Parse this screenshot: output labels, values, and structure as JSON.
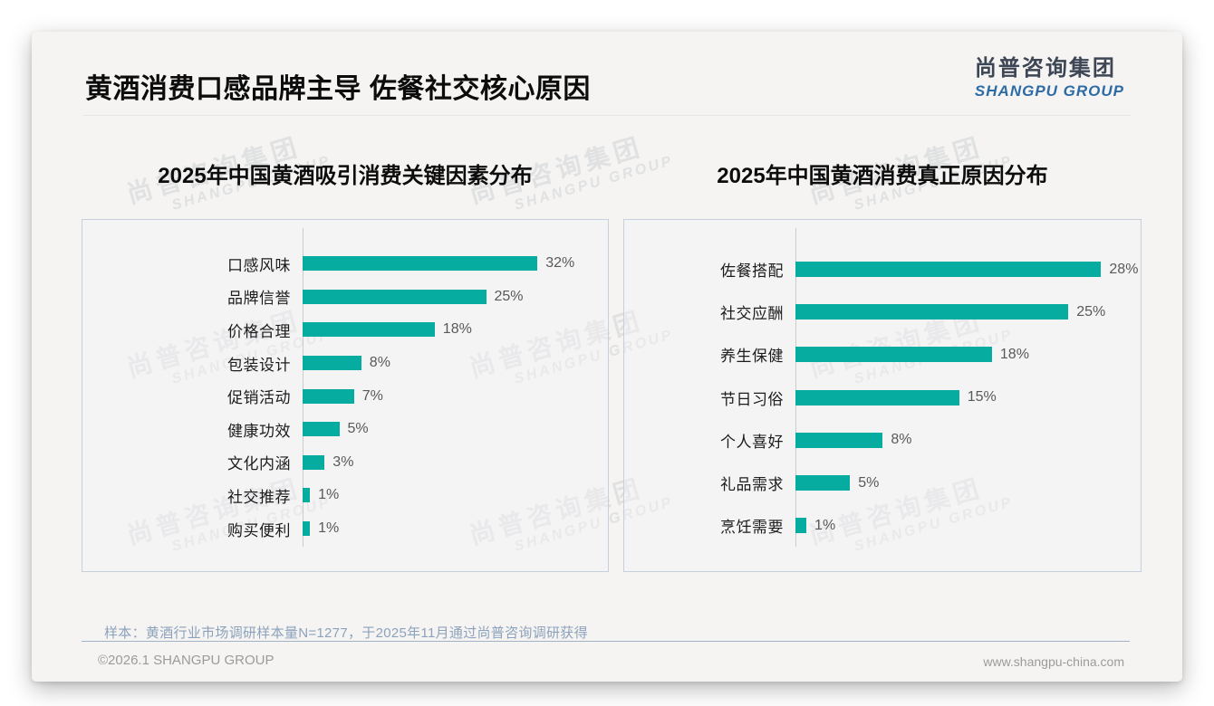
{
  "header": {
    "title": "黄酒消费口感品牌主导 佐餐社交核心原因",
    "logo_cn": "尚普咨询集团",
    "logo_en": "SHANGPU GROUP"
  },
  "watermark": {
    "line1": "尚普咨询集团",
    "line2": "SHANGPU GROUP"
  },
  "colors": {
    "bar": "#06aca0",
    "panel_border": "#c6d0dd",
    "logo_blue": "#2d6ba5"
  },
  "chart_data": [
    {
      "type": "bar",
      "orientation": "horizontal",
      "title": "2025年中国黄酒吸引消费关键因素分布",
      "categories": [
        "口感风味",
        "品牌信誉",
        "价格合理",
        "包装设计",
        "促销活动",
        "健康功效",
        "文化内涵",
        "社交推荐",
        "购买便利"
      ],
      "values": [
        32,
        25,
        18,
        8,
        7,
        5,
        3,
        1,
        1
      ],
      "unit": "%",
      "value_labels": [
        "32%",
        "25%",
        "18%",
        "8%",
        "7%",
        "5%",
        "3%",
        "1%",
        "1%"
      ],
      "xlim": [
        0,
        40
      ],
      "grid": false,
      "legend": false
    },
    {
      "type": "bar",
      "orientation": "horizontal",
      "title": "2025年中国黄酒消费真正原因分布",
      "categories": [
        "佐餐搭配",
        "社交应酬",
        "养生保健",
        "节日习俗",
        "个人喜好",
        "礼品需求",
        "烹饪需要"
      ],
      "values": [
        28,
        25,
        18,
        15,
        8,
        5,
        1
      ],
      "unit": "%",
      "value_labels": [
        "28%",
        "25%",
        "18%",
        "15%",
        "8%",
        "5%",
        "1%"
      ],
      "xlim": [
        0,
        32
      ],
      "grid": false,
      "legend": false
    }
  ],
  "footnote": "样本：黄酒行业市场调研样本量N=1277，于2025年11月通过尚普咨询调研获得",
  "footer": {
    "left": "©2026.1 SHANGPU GROUP",
    "right": "www.shangpu-china.com"
  }
}
